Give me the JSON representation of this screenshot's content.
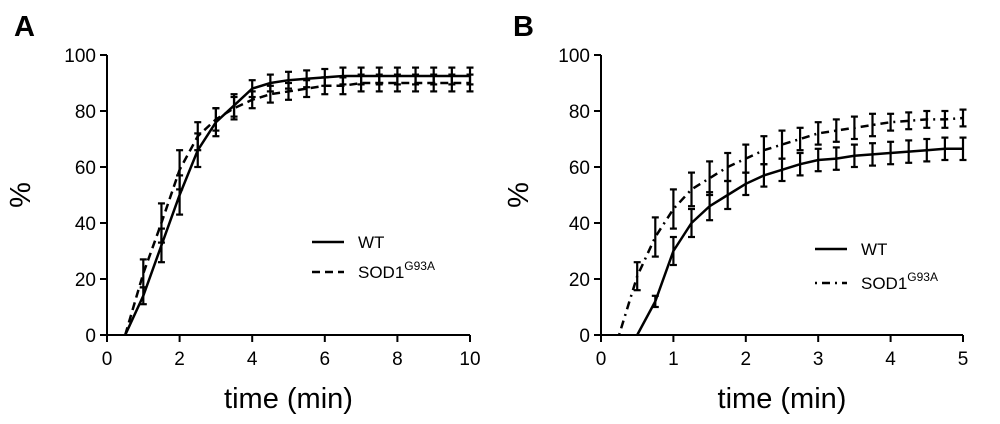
{
  "chart_data": [
    {
      "type": "line",
      "panel_label": "A",
      "xlabel": "time (min)",
      "ylabel": "%",
      "xlim": [
        0,
        10
      ],
      "ylim": [
        0,
        100
      ],
      "xticks": [
        0,
        2,
        4,
        6,
        8,
        10
      ],
      "yticks": [
        0,
        20,
        40,
        60,
        80,
        100
      ],
      "legend_placement": "lower-right",
      "series": [
        {
          "name": "WT",
          "superscript": "",
          "dash": "solid",
          "x": [
            0.5,
            1.0,
            1.5,
            2.0,
            2.5,
            3.0,
            3.5,
            4.0,
            4.5,
            5.0,
            5.5,
            6.0,
            6.5,
            7.0,
            7.5,
            8.0,
            8.5,
            9.0,
            9.5,
            10.0
          ],
          "y": [
            0,
            14,
            32,
            50,
            66,
            76,
            82,
            88,
            90,
            91,
            91.5,
            92,
            92.5,
            92.5,
            92.5,
            92.5,
            92.5,
            92.5,
            92.5,
            92.5
          ],
          "error": [
            0,
            3,
            6,
            7,
            6,
            5,
            4,
            3,
            3,
            3,
            3,
            3,
            3,
            3,
            3,
            3,
            3,
            3,
            3,
            3
          ]
        },
        {
          "name": "SOD1",
          "superscript": "G93A",
          "dash": "dashed",
          "x": [
            0.5,
            1.0,
            1.5,
            2.0,
            2.5,
            3.0,
            3.5,
            4.0,
            4.5,
            5.0,
            5.5,
            6.0,
            6.5,
            7.0,
            7.5,
            8.0,
            8.5,
            9.0,
            9.5,
            10.0
          ],
          "y": [
            0,
            22,
            40,
            59,
            71,
            77,
            81,
            84,
            86,
            87,
            88,
            89,
            89,
            90,
            90,
            90,
            90,
            90,
            90,
            90
          ],
          "error": [
            0,
            5,
            7,
            7,
            5,
            4,
            4,
            3,
            3,
            3,
            3,
            3,
            3,
            3,
            3,
            3,
            3,
            3,
            3,
            3
          ]
        }
      ]
    },
    {
      "type": "line",
      "panel_label": "B",
      "xlabel": "time (min)",
      "ylabel": "%",
      "xlim": [
        0,
        5
      ],
      "ylim": [
        0,
        100
      ],
      "xticks": [
        0,
        1,
        2,
        3,
        4,
        5
      ],
      "yticks": [
        0,
        20,
        40,
        60,
        80,
        100
      ],
      "legend_placement": "lower-right",
      "series": [
        {
          "name": "WT",
          "superscript": "",
          "dash": "solid",
          "x": [
            0.5,
            0.75,
            1.0,
            1.25,
            1.5,
            1.75,
            2.0,
            2.25,
            2.5,
            2.75,
            3.0,
            3.25,
            3.5,
            3.75,
            4.0,
            4.25,
            4.5,
            4.75,
            5.0
          ],
          "y": [
            0,
            12,
            30,
            40,
            46,
            50,
            54,
            57,
            59,
            61,
            62.5,
            63,
            64,
            64.5,
            65,
            65.5,
            66,
            66.5,
            66.5
          ],
          "error": [
            0,
            2,
            5,
            5,
            5,
            5,
            4,
            4,
            4,
            4,
            4,
            4,
            4,
            4,
            4,
            4,
            4,
            4,
            4
          ]
        },
        {
          "name": "SOD1",
          "superscript": "G93A",
          "dash": "dashdot",
          "x": [
            0.25,
            0.5,
            0.75,
            1.0,
            1.25,
            1.5,
            1.75,
            2.0,
            2.25,
            2.5,
            2.75,
            3.0,
            3.25,
            3.5,
            3.75,
            4.0,
            4.25,
            4.5,
            4.75,
            5.0
          ],
          "y": [
            0,
            21,
            35,
            45,
            52,
            56,
            60,
            63,
            66,
            68,
            70,
            72,
            73,
            74,
            75,
            76,
            76.5,
            77,
            77,
            77.5
          ],
          "error": [
            0,
            5,
            7,
            7,
            6,
            6,
            5,
            5,
            5,
            5,
            4,
            4,
            4,
            4,
            4,
            3,
            3,
            3,
            3,
            3
          ]
        }
      ]
    }
  ]
}
